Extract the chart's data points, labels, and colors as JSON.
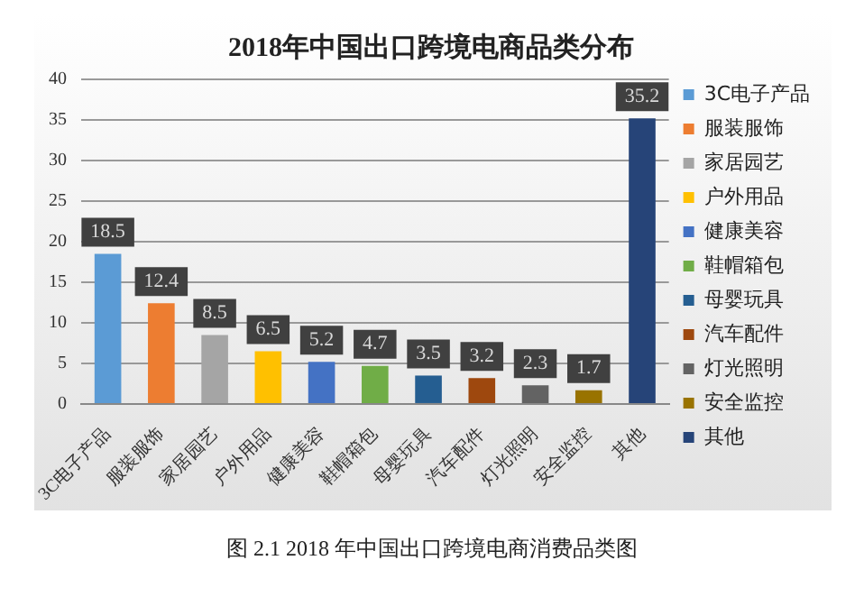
{
  "chart_data": {
    "type": "bar",
    "title": "2018年中国出口跨境电商品类分布",
    "categories": [
      "3C电子产品",
      "服装服饰",
      "家居园艺",
      "户外用品",
      "健康美容",
      "鞋帽箱包",
      "母婴玩具",
      "汽车配件",
      "灯光照明",
      "安全监控",
      "其他"
    ],
    "series": [
      {
        "name": "3C电子产品",
        "color": "#5b9bd5",
        "values": [
          18.5,
          null,
          null,
          null,
          null,
          null,
          null,
          null,
          null,
          null,
          null
        ]
      },
      {
        "name": "服装服饰",
        "color": "#ed7d31",
        "values": [
          null,
          12.4,
          null,
          null,
          null,
          null,
          null,
          null,
          null,
          null,
          null
        ]
      },
      {
        "name": "家居园艺",
        "color": "#a5a5a5",
        "values": [
          null,
          null,
          8.5,
          null,
          null,
          null,
          null,
          null,
          null,
          null,
          null
        ]
      },
      {
        "name": "户外用品",
        "color": "#ffc000",
        "values": [
          null,
          null,
          null,
          6.5,
          null,
          null,
          null,
          null,
          null,
          null,
          null
        ]
      },
      {
        "name": "健康美容",
        "color": "#4472c4",
        "values": [
          null,
          null,
          null,
          null,
          5.2,
          null,
          null,
          null,
          null,
          null,
          null
        ]
      },
      {
        "name": "鞋帽箱包",
        "color": "#70ad47",
        "values": [
          null,
          null,
          null,
          null,
          null,
          4.7,
          null,
          null,
          null,
          null,
          null
        ]
      },
      {
        "name": "母婴玩具",
        "color": "#255e91",
        "values": [
          null,
          null,
          null,
          null,
          null,
          null,
          3.5,
          null,
          null,
          null,
          null
        ]
      },
      {
        "name": "汽车配件",
        "color": "#9e480e",
        "values": [
          null,
          null,
          null,
          null,
          null,
          null,
          null,
          3.2,
          null,
          null,
          null
        ]
      },
      {
        "name": "灯光照明",
        "color": "#636363",
        "values": [
          null,
          null,
          null,
          null,
          null,
          null,
          null,
          null,
          2.3,
          null,
          null
        ]
      },
      {
        "name": "安全监控",
        "color": "#997300",
        "values": [
          null,
          null,
          null,
          null,
          null,
          null,
          null,
          null,
          null,
          1.7,
          null
        ]
      },
      {
        "name": "其他",
        "color": "#264478",
        "values": [
          null,
          null,
          null,
          null,
          null,
          null,
          null,
          null,
          null,
          null,
          35.2
        ]
      }
    ],
    "ylim": [
      0,
      40
    ],
    "yticks": [
      0,
      5,
      10,
      15,
      20,
      25,
      30,
      35,
      40
    ],
    "grid": "y",
    "legend": "right",
    "data_labels": true,
    "annotations": [
      "图 2.1 2018 年中国出口跨境电商消费品类图"
    ]
  }
}
